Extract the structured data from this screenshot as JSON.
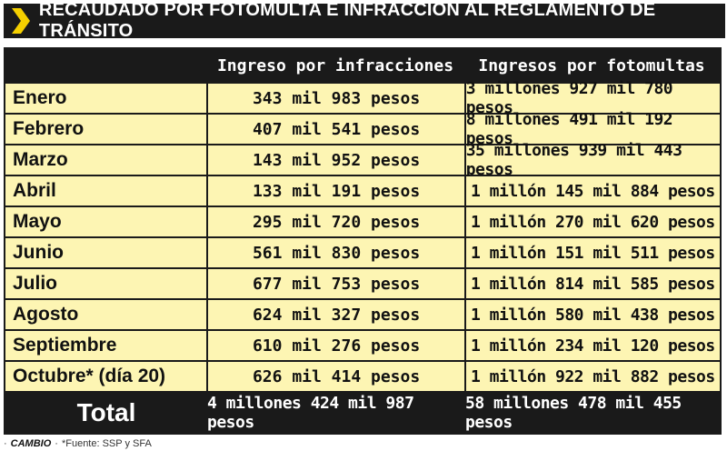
{
  "title": "RECAUDADO POR FOTOMULTA E INFRACCIÓN AL REGLAMENTO DE TRÁNSITO",
  "colors": {
    "accent": "#f5d000",
    "header_bg": "#1a1a1a",
    "row_bg": "#fdf5b3"
  },
  "table": {
    "headers": [
      "",
      "Ingreso por infracciones",
      "Ingresos por fotomultas"
    ],
    "rows": [
      {
        "month": "Enero",
        "infracciones": "343 mil 983 pesos",
        "fotomultas": "3 millones 927 mil 780 pesos"
      },
      {
        "month": "Febrero",
        "infracciones": "407 mil 541 pesos",
        "fotomultas": "8 millones 491 mil 192 pesos"
      },
      {
        "month": "Marzo",
        "infracciones": "143 mil 952 pesos",
        "fotomultas": "35 millones 939 mil 443 pesos"
      },
      {
        "month": "Abril",
        "infracciones": "133 mil 191 pesos",
        "fotomultas": "1 millón 145 mil 884 pesos"
      },
      {
        "month": "Mayo",
        "infracciones": "295 mil 720 pesos",
        "fotomultas": "1 millón 270 mil 620 pesos"
      },
      {
        "month": "Junio",
        "infracciones": "561 mil 830 pesos",
        "fotomultas": "1 millón 151 mil 511 pesos"
      },
      {
        "month": "Julio",
        "infracciones": "677 mil 753 pesos",
        "fotomultas": "1 millón 814 mil 585 pesos"
      },
      {
        "month": "Agosto",
        "infracciones": "624 mil 327 pesos",
        "fotomultas": "1 millón 580 mil 438 pesos"
      },
      {
        "month": "Septiembre",
        "infracciones": "610 mil 276 pesos",
        "fotomultas": "1 millón 234 mil 120 pesos"
      },
      {
        "month": "Octubre*  (día 20)",
        "infracciones": "626 mil 414 pesos",
        "fotomultas": "1 millón 922 mil 882 pesos"
      }
    ],
    "total": {
      "label": "Total",
      "infracciones": "4 millones 424 mil 987 pesos",
      "fotomultas": "58 millones 478 mil 455 pesos"
    }
  },
  "footer": {
    "brand": "CAMBIO",
    "source": "*Fuente: SSP y SFA"
  }
}
